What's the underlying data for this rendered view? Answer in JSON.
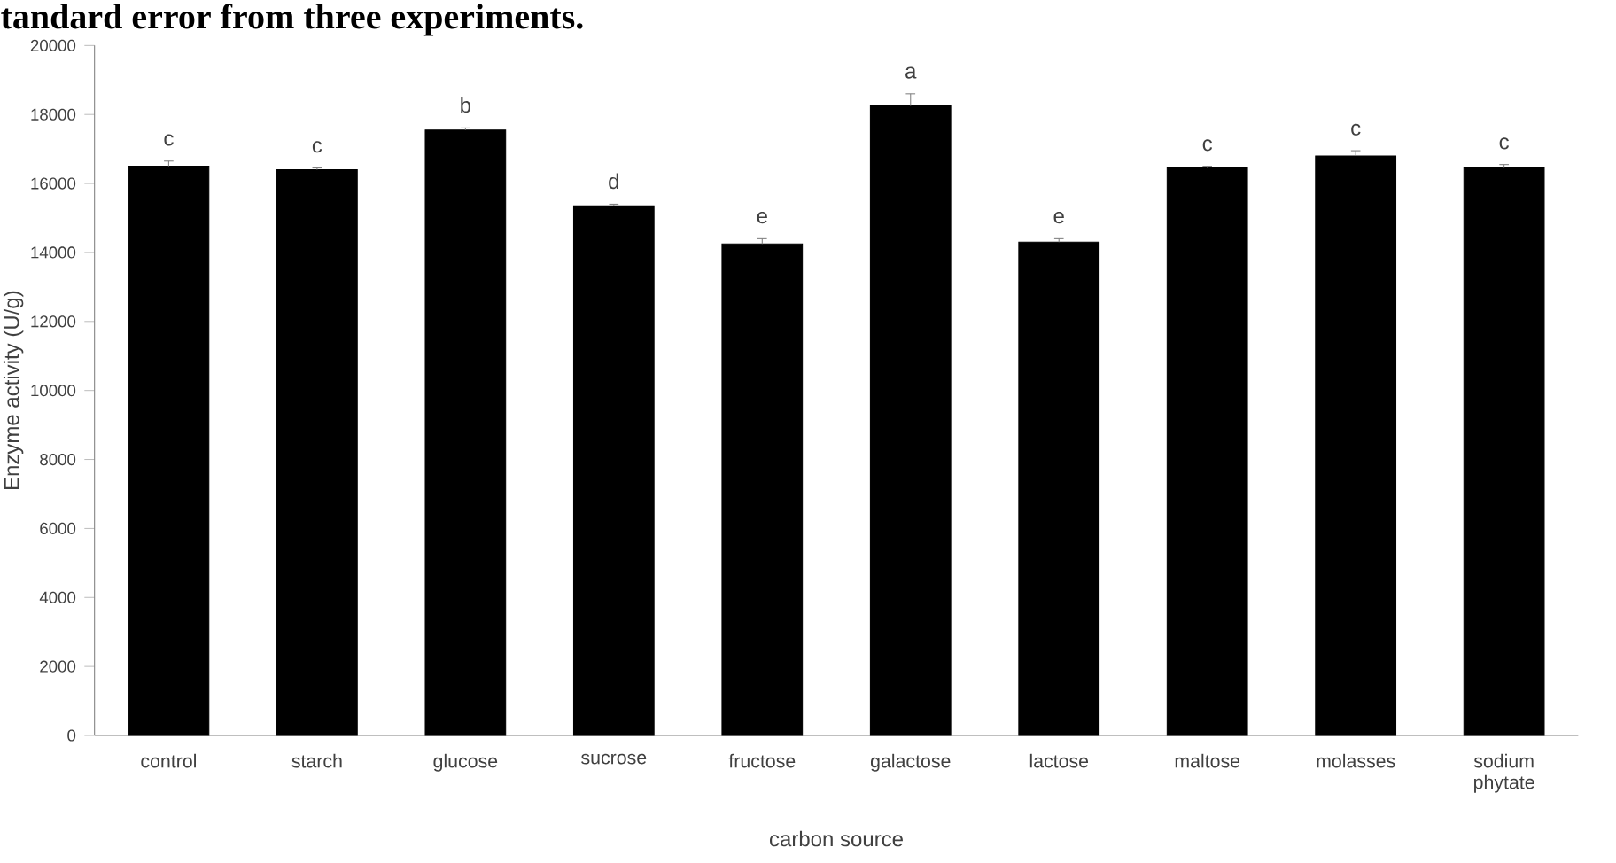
{
  "chart_data": {
    "type": "bar",
    "title": "tandard error from three experiments.",
    "xlabel": "carbon source",
    "ylabel": "Enzyme activity (U/g)",
    "categories": [
      "control",
      "starch",
      "glucose",
      "sucrose",
      "fructose",
      "galactose",
      "lactose",
      "maltose",
      "molasses",
      "sodium phytate"
    ],
    "values": [
      16500,
      16400,
      17550,
      15350,
      14250,
      18250,
      14300,
      16450,
      16800,
      16450
    ],
    "errors": [
      150,
      50,
      60,
      50,
      150,
      350,
      100,
      50,
      150,
      100
    ],
    "color": "#000000",
    "ylim": [
      0,
      20000
    ],
    "yticks": [
      0,
      2000,
      4000,
      6000,
      8000,
      10000,
      12000,
      14000,
      16000,
      18000,
      20000
    ],
    "grid": false,
    "annotations": [
      {
        "text": "c",
        "x": "control",
        "y": 16500
      },
      {
        "text": "c",
        "x": "starch",
        "y": 16400
      },
      {
        "text": "b",
        "x": "glucose",
        "y": 17550
      },
      {
        "text": "d",
        "x": "sucrose",
        "y": 15350
      },
      {
        "text": "e",
        "x": "fructose",
        "y": 14250
      },
      {
        "text": "a",
        "x": "galactose",
        "y": 18250
      },
      {
        "text": "e",
        "x": "lactose",
        "y": 14300
      },
      {
        "text": "c",
        "x": "maltose",
        "y": 16450
      },
      {
        "text": "c",
        "x": "molasses",
        "y": 16800
      },
      {
        "text": "c",
        "x": "sodium phytate",
        "y": 16450
      }
    ]
  }
}
